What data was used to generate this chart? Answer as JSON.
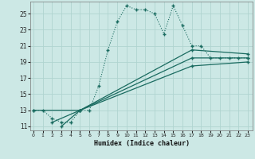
{
  "xlabel": "Humidex (Indice chaleur)",
  "bg_color": "#cce8e5",
  "grid_color": "#b0d4d0",
  "line_color": "#1a6b60",
  "yticks": [
    11,
    13,
    15,
    17,
    19,
    21,
    23,
    25
  ],
  "xticks": [
    0,
    1,
    2,
    3,
    4,
    5,
    6,
    7,
    8,
    9,
    10,
    11,
    12,
    13,
    14,
    15,
    16,
    17,
    18,
    19,
    20,
    21,
    22,
    23
  ],
  "xlim": [
    -0.3,
    23.5
  ],
  "ylim": [
    10.5,
    26.5
  ],
  "curve1_x": [
    0,
    1,
    2,
    3,
    4,
    5,
    6,
    7,
    8,
    9,
    10,
    11,
    12,
    13,
    14,
    15,
    16,
    17,
    18,
    19,
    20,
    21,
    22,
    23
  ],
  "curve1_y": [
    13,
    13,
    12,
    11.5,
    11.5,
    13,
    13,
    16,
    20.5,
    24,
    26,
    25.5,
    25.5,
    25,
    22.5,
    26,
    23.5,
    21,
    21,
    19.5,
    19.5,
    19.5,
    19.5,
    19.5
  ],
  "curve2_x": [
    0,
    5,
    17,
    23
  ],
  "curve2_y": [
    13,
    13,
    20.5,
    20
  ],
  "curve3_x": [
    2,
    5,
    17,
    23
  ],
  "curve3_y": [
    11.5,
    13,
    19.5,
    19.5
  ],
  "curve4_x": [
    3,
    5,
    17,
    23
  ],
  "curve4_y": [
    11,
    13,
    18.5,
    19
  ]
}
